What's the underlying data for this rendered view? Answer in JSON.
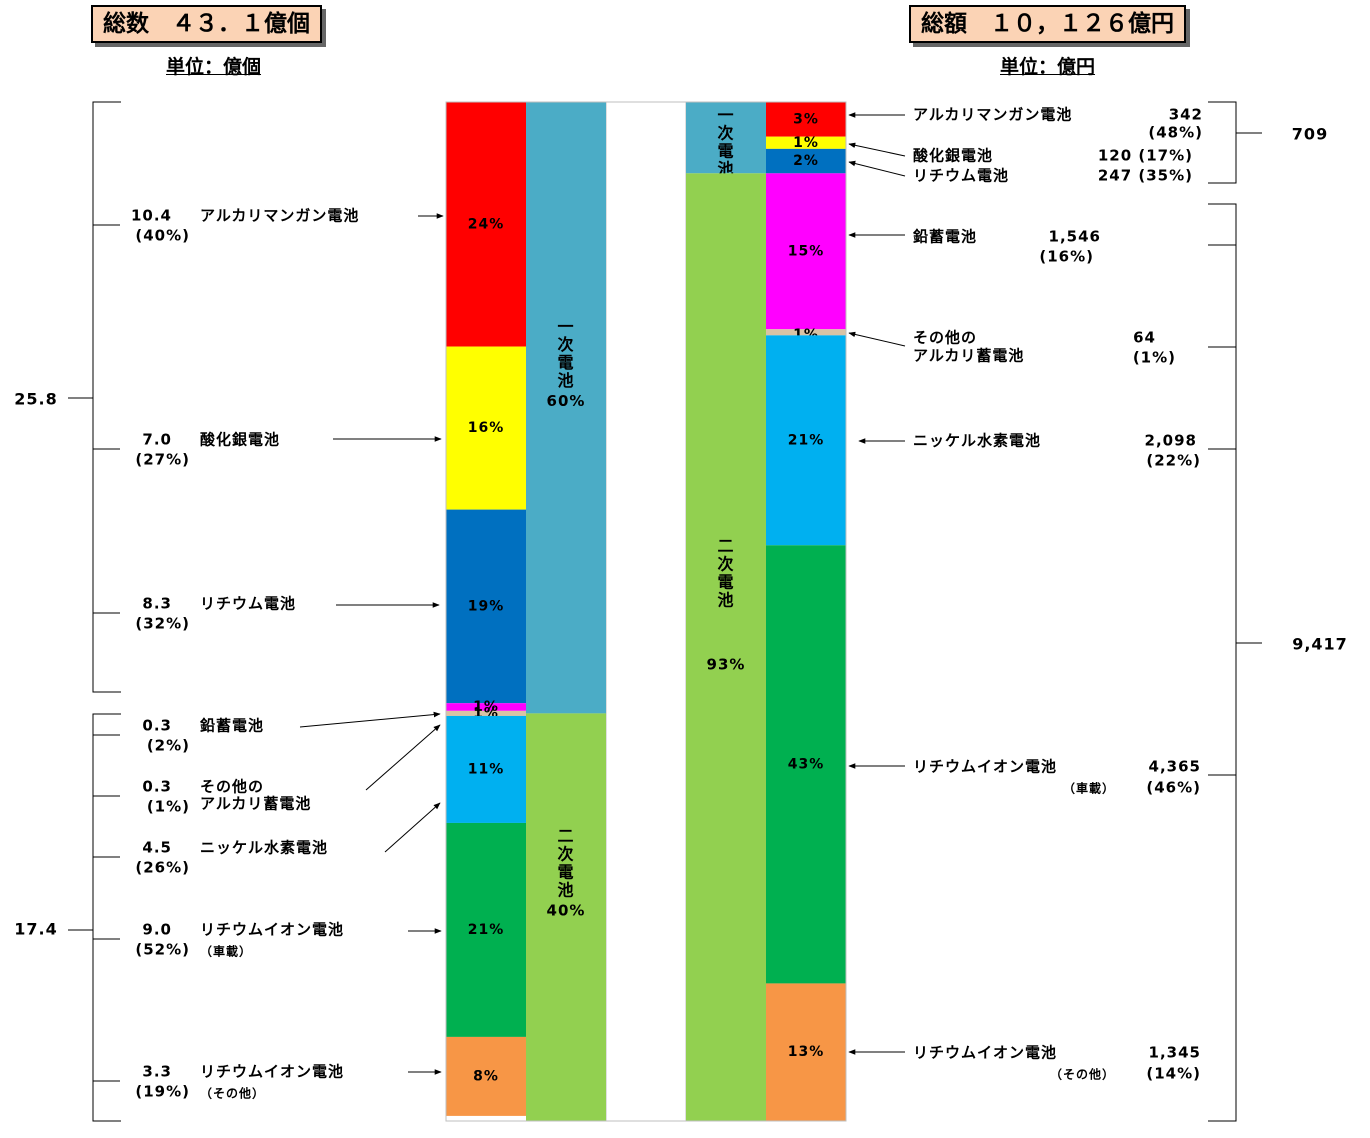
{
  "header": {
    "left_title": "総数　４３．１億個",
    "left_unit": "単位：億個",
    "right_title": "総額　１０，１２６億円",
    "right_unit": "単位：億円"
  },
  "chart_data": {
    "type": "bar",
    "stacked": true,
    "subtype": "100%-stacked-column",
    "charts": [
      {
        "title": "総数　４３．１億個",
        "unit": "単位：億個",
        "category_column": {
          "segments": [
            {
              "label_lines": [
                "一",
                "次",
                "電",
                "池"
              ],
              "percent": "60%",
              "fraction": 0.6,
              "color": "#4bacc6"
            },
            {
              "label_lines": [
                "二",
                "次",
                "電",
                "池"
              ],
              "percent": "40%",
              "fraction": 0.4,
              "color": "#92d050"
            }
          ]
        },
        "segments": [
          {
            "name": "アルカリマンガン電池",
            "value": "10.4",
            "share": "(40%)",
            "percent": "24%",
            "fraction": 0.24,
            "color": "#ff0000"
          },
          {
            "name": "酸化銀電池",
            "value": "7.0",
            "share": "(27%)",
            "percent": "16%",
            "fraction": 0.16,
            "color": "#ffff00"
          },
          {
            "name": "リチウム電池",
            "value": "8.3",
            "share": "(32%)",
            "percent": "19%",
            "fraction": 0.19,
            "color": "#0070c0"
          },
          {
            "name": "鉛蓄電池",
            "value": "0.3",
            "share": "(2%)",
            "percent": "1%",
            "fraction": 0.0075,
            "color": "#ff00ff"
          },
          {
            "name": "その他の\nアルカリ蓄電池",
            "value": "0.3",
            "share": "(1%)",
            "percent": "1%",
            "fraction": 0.005,
            "color": "#d9c3a5"
          },
          {
            "name": "ニッケル水素電池",
            "value": "4.5",
            "share": "(26%)",
            "percent": "11%",
            "fraction": 0.105,
            "color": "#00b0f0"
          },
          {
            "name": "リチウムイオン電池",
            "sub": "（車載）",
            "value": "9.0",
            "share": "(52%)",
            "percent": "21%",
            "fraction": 0.21,
            "color": "#00b050"
          },
          {
            "name": "リチウムイオン電池",
            "sub": "（その他）",
            "value": "3.3",
            "share": "(19%)",
            "percent": "8%",
            "fraction": 0.0775,
            "color": "#f79646"
          }
        ],
        "group_totals": [
          {
            "label": "一次電池",
            "value": "25.8"
          },
          {
            "label": "二次電池",
            "value": "17.4"
          }
        ]
      },
      {
        "title": "総額　１０，１２６億円",
        "unit": "単位：億円",
        "category_column": {
          "segments": [
            {
              "label_lines": [
                "一",
                "次",
                "電",
                "池"
              ],
              "percent": "7%",
              "fraction": 0.07,
              "color": "#4bacc6"
            },
            {
              "label_lines": [
                "二",
                "次",
                "電",
                "池"
              ],
              "percent": "93%",
              "fraction": 0.93,
              "color": "#92d050"
            }
          ]
        },
        "segments": [
          {
            "name": "アルカリマンガン電池",
            "value": "342",
            "share": "(48%)",
            "percent": "3%",
            "fraction": 0.034,
            "color": "#ff0000"
          },
          {
            "name": "酸化銀電池",
            "value": "120",
            "share": "(17%)",
            "percent": "1%",
            "fraction": 0.012,
            "color": "#ffff00"
          },
          {
            "name": "リチウム電池",
            "value": "247",
            "share": "(35%)",
            "percent": "2%",
            "fraction": 0.024,
            "color": "#0070c0"
          },
          {
            "name": "鉛蓄電池",
            "value": "1,546",
            "share": "(16%)",
            "percent": "15%",
            "fraction": 0.153,
            "color": "#ff00ff"
          },
          {
            "name": "その他の\nアルカリ蓄電池",
            "value": "64",
            "share": "(1%)",
            "percent": "1%",
            "fraction": 0.006,
            "color": "#d9c3a5"
          },
          {
            "name": "ニッケル水素電池",
            "value": "2,098",
            "share": "(22%)",
            "percent": "21%",
            "fraction": 0.206,
            "color": "#00b0f0"
          },
          {
            "name": "リチウムイオン電池",
            "sub": "（車載）",
            "value": "4,365",
            "share": "(46%)",
            "percent": "43%",
            "fraction": 0.43,
            "color": "#00b050"
          },
          {
            "name": "リチウムイオン電池",
            "sub": "（その他）",
            "value": "1,345",
            "share": "(14%)",
            "percent": "13%",
            "fraction": 0.135,
            "color": "#f79646"
          }
        ],
        "group_totals": [
          {
            "label": "一次電池",
            "value": "709"
          },
          {
            "label": "二次電池",
            "value": "9,417"
          }
        ]
      }
    ]
  }
}
